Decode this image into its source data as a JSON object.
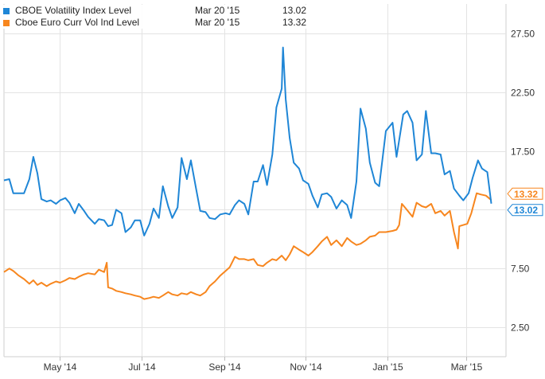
{
  "colors": {
    "series1": "#1f86d6",
    "series2": "#f7861e",
    "grid": "#e3e3e3",
    "axis_text": "#333333"
  },
  "legend": {
    "items": [
      {
        "name": "CBOE Volatility Index Level",
        "date": "Mar 20 '15",
        "value": "13.02"
      },
      {
        "name": "Cboe Euro Curr Vol Ind Level",
        "date": "Mar 20 '15",
        "value": "13.32"
      }
    ]
  },
  "chart_data": {
    "type": "line",
    "x_type": "date",
    "xlim": [
      "2014-03-20",
      "2015-03-31"
    ],
    "ylim": [
      0,
      30
    ],
    "y_ticks": [
      2.5,
      7.5,
      12.5,
      17.5,
      22.5,
      27.5
    ],
    "y_tick_labels": [
      "2.50",
      "7.50",
      "12.50",
      "17.50",
      "22.50",
      "27.50"
    ],
    "x_ticks": [
      "2014-05-01",
      "2014-07-01",
      "2014-09-01",
      "2014-11-01",
      "2015-01-01",
      "2015-03-01"
    ],
    "x_tick_labels": [
      "May '14",
      "Jul '14",
      "Sep '14",
      "Nov '14",
      "Jan '15",
      "Mar '15"
    ],
    "grid": true,
    "legend_position": "top-left",
    "end_labels": [
      "13.32",
      "13.02"
    ],
    "series": [
      {
        "name": "CBOE Volatility Index Level",
        "color": "#1f86d6",
        "end_label": "13.02",
        "points": [
          [
            "2014-03-20",
            15.0
          ],
          [
            "2014-03-24",
            15.1
          ],
          [
            "2014-03-27",
            13.9
          ],
          [
            "2014-03-31",
            13.9
          ],
          [
            "2014-04-04",
            13.9
          ],
          [
            "2014-04-08",
            15.1
          ],
          [
            "2014-04-11",
            17.0
          ],
          [
            "2014-04-14",
            15.6
          ],
          [
            "2014-04-17",
            13.4
          ],
          [
            "2014-04-21",
            13.2
          ],
          [
            "2014-04-24",
            13.3
          ],
          [
            "2014-04-28",
            13.0
          ],
          [
            "2014-05-01",
            13.3
          ],
          [
            "2014-05-05",
            13.5
          ],
          [
            "2014-05-08",
            13.1
          ],
          [
            "2014-05-12",
            12.2
          ],
          [
            "2014-05-15",
            13.0
          ],
          [
            "2014-05-19",
            12.4
          ],
          [
            "2014-05-22",
            11.9
          ],
          [
            "2014-05-27",
            11.3
          ],
          [
            "2014-05-30",
            11.7
          ],
          [
            "2014-06-03",
            11.6
          ],
          [
            "2014-06-06",
            11.1
          ],
          [
            "2014-06-09",
            11.2
          ],
          [
            "2014-06-12",
            12.5
          ],
          [
            "2014-06-16",
            12.2
          ],
          [
            "2014-06-19",
            10.6
          ],
          [
            "2014-06-23",
            11.0
          ],
          [
            "2014-06-26",
            11.6
          ],
          [
            "2014-06-30",
            11.6
          ],
          [
            "2014-07-03",
            10.3
          ],
          [
            "2014-07-07",
            11.3
          ],
          [
            "2014-07-10",
            12.6
          ],
          [
            "2014-07-14",
            11.8
          ],
          [
            "2014-07-17",
            14.5
          ],
          [
            "2014-07-21",
            12.8
          ],
          [
            "2014-07-24",
            11.8
          ],
          [
            "2014-07-28",
            12.7
          ],
          [
            "2014-07-31",
            16.9
          ],
          [
            "2014-08-04",
            15.1
          ],
          [
            "2014-08-07",
            16.7
          ],
          [
            "2014-08-11",
            14.2
          ],
          [
            "2014-08-14",
            12.4
          ],
          [
            "2014-08-18",
            12.3
          ],
          [
            "2014-08-21",
            11.8
          ],
          [
            "2014-08-25",
            11.7
          ],
          [
            "2014-08-29",
            12.1
          ],
          [
            "2014-09-02",
            12.2
          ],
          [
            "2014-09-05",
            12.1
          ],
          [
            "2014-09-09",
            12.9
          ],
          [
            "2014-09-12",
            13.3
          ],
          [
            "2014-09-16",
            13.0
          ],
          [
            "2014-09-19",
            12.1
          ],
          [
            "2014-09-23",
            14.9
          ],
          [
            "2014-09-26",
            14.9
          ],
          [
            "2014-09-30",
            16.3
          ],
          [
            "2014-10-03",
            14.6
          ],
          [
            "2014-10-07",
            17.2
          ],
          [
            "2014-10-10",
            21.2
          ],
          [
            "2014-10-14",
            22.8
          ],
          [
            "2014-10-15",
            26.3
          ],
          [
            "2014-10-17",
            21.9
          ],
          [
            "2014-10-20",
            18.6
          ],
          [
            "2014-10-23",
            16.5
          ],
          [
            "2014-10-27",
            16.0
          ],
          [
            "2014-10-30",
            15.0
          ],
          [
            "2014-11-03",
            14.7
          ],
          [
            "2014-11-06",
            13.7
          ],
          [
            "2014-11-10",
            12.7
          ],
          [
            "2014-11-13",
            13.8
          ],
          [
            "2014-11-17",
            13.9
          ],
          [
            "2014-11-20",
            13.6
          ],
          [
            "2014-11-24",
            12.6
          ],
          [
            "2014-11-28",
            13.3
          ],
          [
            "2014-12-02",
            12.9
          ],
          [
            "2014-12-05",
            11.8
          ],
          [
            "2014-12-09",
            14.9
          ],
          [
            "2014-12-12",
            21.1
          ],
          [
            "2014-12-16",
            19.4
          ],
          [
            "2014-12-19",
            16.5
          ],
          [
            "2014-12-23",
            14.8
          ],
          [
            "2014-12-26",
            14.5
          ],
          [
            "2014-12-31",
            19.2
          ],
          [
            "2015-01-05",
            19.9
          ],
          [
            "2015-01-08",
            17.0
          ],
          [
            "2015-01-13",
            20.6
          ],
          [
            "2015-01-16",
            20.9
          ],
          [
            "2015-01-20",
            19.9
          ],
          [
            "2015-01-23",
            16.7
          ],
          [
            "2015-01-27",
            17.2
          ],
          [
            "2015-01-30",
            20.9
          ],
          [
            "2015-02-03",
            17.3
          ],
          [
            "2015-02-06",
            17.3
          ],
          [
            "2015-02-10",
            17.2
          ],
          [
            "2015-02-13",
            15.5
          ],
          [
            "2015-02-17",
            15.8
          ],
          [
            "2015-02-20",
            14.3
          ],
          [
            "2015-02-24",
            13.7
          ],
          [
            "2015-02-27",
            13.3
          ],
          [
            "2015-03-03",
            13.9
          ],
          [
            "2015-03-06",
            15.2
          ],
          [
            "2015-03-10",
            16.7
          ],
          [
            "2015-03-13",
            16.0
          ],
          [
            "2015-03-17",
            15.7
          ],
          [
            "2015-03-20",
            13.02
          ]
        ]
      },
      {
        "name": "Cboe Euro Curr Vol Ind Level",
        "color": "#f7861e",
        "end_label": "13.32",
        "points": [
          [
            "2014-03-20",
            7.2
          ],
          [
            "2014-03-24",
            7.5
          ],
          [
            "2014-03-27",
            7.3
          ],
          [
            "2014-03-31",
            6.9
          ],
          [
            "2014-04-04",
            6.6
          ],
          [
            "2014-04-08",
            6.2
          ],
          [
            "2014-04-11",
            6.5
          ],
          [
            "2014-04-14",
            6.1
          ],
          [
            "2014-04-17",
            6.3
          ],
          [
            "2014-04-21",
            6.0
          ],
          [
            "2014-04-24",
            6.2
          ],
          [
            "2014-04-28",
            6.4
          ],
          [
            "2014-05-01",
            6.3
          ],
          [
            "2014-05-05",
            6.5
          ],
          [
            "2014-05-08",
            6.7
          ],
          [
            "2014-05-12",
            6.6
          ],
          [
            "2014-05-15",
            6.8
          ],
          [
            "2014-05-19",
            7.0
          ],
          [
            "2014-05-22",
            7.1
          ],
          [
            "2014-05-27",
            7.0
          ],
          [
            "2014-05-30",
            7.4
          ],
          [
            "2014-06-03",
            7.2
          ],
          [
            "2014-06-05",
            8.0
          ],
          [
            "2014-06-06",
            5.9
          ],
          [
            "2014-06-09",
            5.8
          ],
          [
            "2014-06-12",
            5.6
          ],
          [
            "2014-06-16",
            5.5
          ],
          [
            "2014-06-19",
            5.4
          ],
          [
            "2014-06-23",
            5.3
          ],
          [
            "2014-06-26",
            5.2
          ],
          [
            "2014-06-30",
            5.1
          ],
          [
            "2014-07-03",
            4.9
          ],
          [
            "2014-07-07",
            5.0
          ],
          [
            "2014-07-10",
            5.1
          ],
          [
            "2014-07-14",
            5.0
          ],
          [
            "2014-07-17",
            5.2
          ],
          [
            "2014-07-21",
            5.5
          ],
          [
            "2014-07-24",
            5.3
          ],
          [
            "2014-07-28",
            5.2
          ],
          [
            "2014-07-31",
            5.4
          ],
          [
            "2014-08-04",
            5.3
          ],
          [
            "2014-08-07",
            5.5
          ],
          [
            "2014-08-11",
            5.3
          ],
          [
            "2014-08-14",
            5.2
          ],
          [
            "2014-08-18",
            5.5
          ],
          [
            "2014-08-21",
            6.0
          ],
          [
            "2014-08-25",
            6.4
          ],
          [
            "2014-08-29",
            6.9
          ],
          [
            "2014-09-02",
            7.3
          ],
          [
            "2014-09-05",
            7.6
          ],
          [
            "2014-09-09",
            8.5
          ],
          [
            "2014-09-12",
            8.3
          ],
          [
            "2014-09-16",
            8.3
          ],
          [
            "2014-09-19",
            8.2
          ],
          [
            "2014-09-23",
            8.3
          ],
          [
            "2014-09-26",
            7.8
          ],
          [
            "2014-09-30",
            7.7
          ],
          [
            "2014-10-03",
            8.0
          ],
          [
            "2014-10-07",
            8.3
          ],
          [
            "2014-10-10",
            8.2
          ],
          [
            "2014-10-14",
            8.6
          ],
          [
            "2014-10-17",
            8.2
          ],
          [
            "2014-10-20",
            8.7
          ],
          [
            "2014-10-23",
            9.4
          ],
          [
            "2014-10-27",
            9.1
          ],
          [
            "2014-10-30",
            8.9
          ],
          [
            "2014-11-03",
            8.6
          ],
          [
            "2014-11-06",
            8.9
          ],
          [
            "2014-11-10",
            9.4
          ],
          [
            "2014-11-13",
            9.8
          ],
          [
            "2014-11-17",
            10.2
          ],
          [
            "2014-11-20",
            9.5
          ],
          [
            "2014-11-24",
            9.9
          ],
          [
            "2014-11-28",
            9.4
          ],
          [
            "2014-12-02",
            10.1
          ],
          [
            "2014-12-05",
            9.8
          ],
          [
            "2014-12-09",
            9.5
          ],
          [
            "2014-12-12",
            9.6
          ],
          [
            "2014-12-16",
            9.9
          ],
          [
            "2014-12-19",
            10.2
          ],
          [
            "2014-12-23",
            10.3
          ],
          [
            "2014-12-26",
            10.6
          ],
          [
            "2014-12-31",
            10.6
          ],
          [
            "2015-01-05",
            10.7
          ],
          [
            "2015-01-08",
            10.8
          ],
          [
            "2015-01-10",
            11.2
          ],
          [
            "2015-01-12",
            13.0
          ],
          [
            "2015-01-15",
            12.6
          ],
          [
            "2015-01-20",
            11.9
          ],
          [
            "2015-01-23",
            13.1
          ],
          [
            "2015-01-27",
            12.8
          ],
          [
            "2015-01-30",
            12.7
          ],
          [
            "2015-02-03",
            13.0
          ],
          [
            "2015-02-06",
            12.2
          ],
          [
            "2015-02-10",
            12.4
          ],
          [
            "2015-02-13",
            12.0
          ],
          [
            "2015-02-17",
            12.4
          ],
          [
            "2015-02-20",
            10.6
          ],
          [
            "2015-02-23",
            9.2
          ],
          [
            "2015-02-24",
            11.1
          ],
          [
            "2015-02-27",
            11.2
          ],
          [
            "2015-03-02",
            11.3
          ],
          [
            "2015-03-05",
            12.2
          ],
          [
            "2015-03-09",
            13.9
          ],
          [
            "2015-03-12",
            13.8
          ],
          [
            "2015-03-16",
            13.7
          ],
          [
            "2015-03-20",
            13.32
          ]
        ]
      }
    ]
  }
}
